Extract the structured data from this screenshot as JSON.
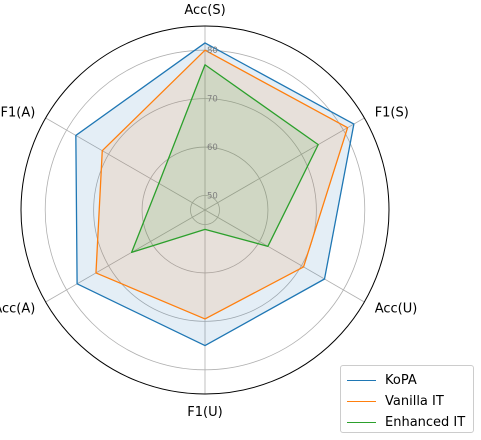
{
  "chart_data": {
    "type": "radar",
    "axes": [
      "Acc(S)",
      "F1(S)",
      "Acc(U)",
      "F1(U)",
      "Acc(A)",
      "F1(A)"
    ],
    "rticks": [
      "50",
      "60",
      "70",
      "80"
    ],
    "rlim": [
      47,
      85
    ],
    "grid": true,
    "legend_position": "bottom-right",
    "series": [
      {
        "name": "KoPA",
        "color": "#1f77b4",
        "fill": "#1f77b4",
        "values": [
          81.5,
          82.5,
          75.5,
          75.0,
          77.5,
          77.8
        ]
      },
      {
        "name": "Vanilla IT",
        "color": "#ff7f0e",
        "fill": "#ff7f0e",
        "values": [
          80.0,
          81.0,
          70.5,
          69.5,
          73.0,
          71.5
        ]
      },
      {
        "name": "Enhanced IT",
        "color": "#2ca02c",
        "fill": "#2ca02c",
        "values": [
          77.0,
          74.0,
          62.0,
          51.0,
          64.5,
          58.0
        ]
      }
    ]
  }
}
